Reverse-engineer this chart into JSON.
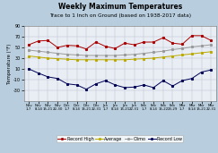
{
  "title": "Weekly Maximum Temperatures",
  "subtitle": "Trace to 1 Inch on Ground (based on 1938-2017 data)",
  "ylabel": "Temperature (°F)",
  "xlabels": [
    "Nov\n1-7",
    "Nov\n8-14",
    "Nov\n15-21",
    "Nov\n22-30",
    "Dec\n1-7",
    "Dec\n8-14",
    "Dec\n15-21",
    "Dec\n22-31",
    "Jan\n1-7",
    "Jan\n8-14",
    "Jan\n15-21",
    "Jan\n22-31",
    "Feb\n1-7",
    "Feb\n8-14",
    "Feb\n15-22",
    "Feb\n23-29",
    "Mar\n1-7",
    "Mar\n8-14",
    "Mar\n15-21",
    "Mar\n22-31"
  ],
  "record_high": [
    55,
    62,
    63,
    50,
    54,
    53,
    47,
    60,
    52,
    48,
    58,
    55,
    60,
    60,
    68,
    58,
    56,
    72,
    72,
    63
  ],
  "average": [
    34,
    32,
    30,
    29,
    28,
    27,
    27,
    27,
    27,
    27,
    27,
    28,
    29,
    30,
    32,
    34,
    36,
    38,
    40,
    42
  ],
  "climo": [
    45,
    43,
    41,
    39,
    37,
    36,
    35,
    35,
    35,
    35,
    36,
    37,
    39,
    41,
    43,
    46,
    48,
    51,
    53,
    55
  ],
  "record_low": [
    10,
    2,
    -5,
    -8,
    -18,
    -20,
    -28,
    -18,
    -12,
    -20,
    -25,
    -24,
    -20,
    -25,
    -12,
    -22,
    -12,
    -8,
    4,
    8
  ],
  "record_high_color": "#aa0000",
  "average_color": "#bbaa00",
  "climo_color": "#999999",
  "record_low_color": "#000055",
  "bg_color": "#b8cede",
  "plot_bg": "#e8eef4",
  "ylim": [
    -50,
    90
  ],
  "yticks": [
    -30,
    -10,
    10,
    30,
    50,
    70,
    90
  ],
  "title_fontsize": 5.5,
  "subtitle_fontsize": 4.2,
  "ylabel_fontsize": 3.8,
  "tick_fontsize": 3.5,
  "xtick_fontsize": 2.8,
  "legend_fontsize": 3.5
}
